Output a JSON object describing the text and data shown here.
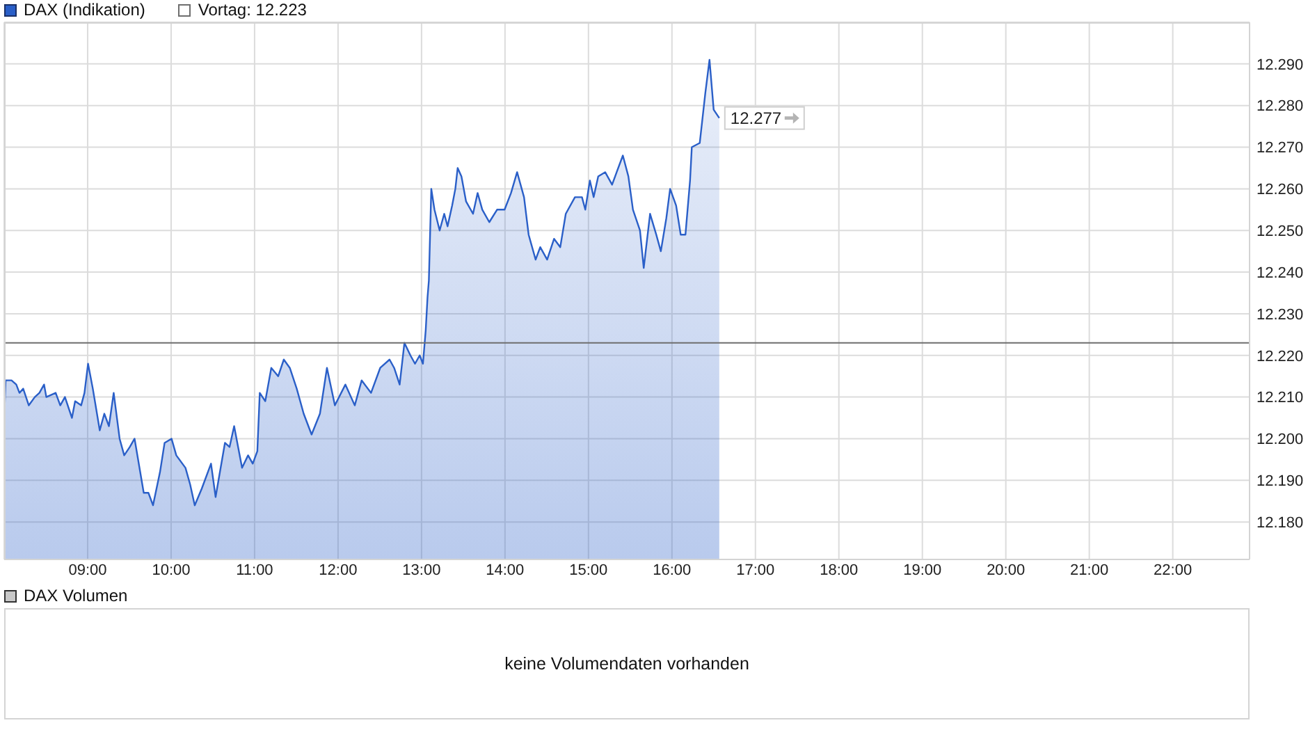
{
  "chart_data": [
    {
      "type": "area",
      "x": [
        8.0,
        8.017,
        8.088,
        8.145,
        8.183,
        8.228,
        8.295,
        8.367,
        8.422,
        8.478,
        8.505,
        8.617,
        8.672,
        8.728,
        8.812,
        8.85,
        8.922,
        8.962,
        9.005,
        9.062,
        9.145,
        9.2,
        9.255,
        9.312,
        9.383,
        9.438,
        9.505,
        9.562,
        9.672,
        9.728,
        9.783,
        9.867,
        9.922,
        10.005,
        10.062,
        10.172,
        10.228,
        10.283,
        10.367,
        10.478,
        10.533,
        10.645,
        10.7,
        10.755,
        10.85,
        10.922,
        10.978,
        11.033,
        11.062,
        11.128,
        11.2,
        11.283,
        11.35,
        11.422,
        11.505,
        11.588,
        11.683,
        11.783,
        11.867,
        11.962,
        12.088,
        12.2,
        12.283,
        12.395,
        12.505,
        12.617,
        12.672,
        12.738,
        12.795,
        12.867,
        12.922,
        12.978,
        13.017,
        13.05,
        13.072,
        13.088,
        13.117,
        13.155,
        13.217,
        13.272,
        13.312,
        13.367,
        13.405,
        13.433,
        13.478,
        13.533,
        13.617,
        13.672,
        13.728,
        13.812,
        13.905,
        13.995,
        14.072,
        14.145,
        14.228,
        14.283,
        14.367,
        14.422,
        14.505,
        14.588,
        14.662,
        14.728,
        14.838,
        14.922,
        14.962,
        15.017,
        15.062,
        15.117,
        15.2,
        15.283,
        15.338,
        15.412,
        15.478,
        15.533,
        15.617,
        15.662,
        15.738,
        15.812,
        15.867,
        15.933,
        15.978,
        16.05,
        16.105,
        16.162,
        16.217,
        16.238,
        16.333,
        16.4,
        16.45,
        16.5,
        16.567
      ],
      "series": [
        {
          "name": "DAX (Indikation)",
          "color": "#2a5fc8",
          "values": [
            12205,
            12214,
            12214,
            12213,
            12211,
            12212,
            12208,
            12210,
            12211,
            12213,
            12210,
            12211,
            12208,
            12210,
            12205,
            12209,
            12208,
            12211,
            12218,
            12212,
            12202,
            12206,
            12203,
            12211,
            12200,
            12196,
            12198,
            12200,
            12187,
            12187,
            12184,
            12192,
            12199,
            12200,
            12196,
            12193,
            12189,
            12184,
            12188,
            12194,
            12186,
            12199,
            12198,
            12203,
            12193,
            12196,
            12194,
            12197,
            12211,
            12209,
            12217,
            12215,
            12219,
            12217,
            12212,
            12206,
            12201,
            12206,
            12217,
            12208,
            12213,
            12208,
            12214,
            12211,
            12217,
            12219,
            12217,
            12213,
            12223,
            12220,
            12218,
            12220,
            12218,
            12226,
            12234,
            12238,
            12260,
            12255,
            12250,
            12254,
            12251,
            12256,
            12260,
            12265,
            12263,
            12257,
            12254,
            12259,
            12255,
            12252,
            12255,
            12255,
            12259,
            12264,
            12258,
            12249,
            12243,
            12246,
            12243,
            12248,
            12246,
            12254,
            12258,
            12258,
            12255,
            12262,
            12258,
            12263,
            12264,
            12261,
            12264,
            12268,
            12263,
            12255,
            12250,
            12241,
            12254,
            12249,
            12245,
            12253,
            12260,
            12256,
            12249,
            12249,
            12262,
            12270,
            12271,
            12283,
            12291,
            12279,
            12277
          ]
        }
      ],
      "xlim": [
        8,
        22.92
      ],
      "xticks": [
        {
          "value": 9,
          "label": "09:00"
        },
        {
          "value": 10,
          "label": "10:00"
        },
        {
          "value": 11,
          "label": "11:00"
        },
        {
          "value": 12,
          "label": "12:00"
        },
        {
          "value": 13,
          "label": "13:00"
        },
        {
          "value": 14,
          "label": "14:00"
        },
        {
          "value": 15,
          "label": "15:00"
        },
        {
          "value": 16,
          "label": "16:00"
        },
        {
          "value": 17,
          "label": "17:00"
        },
        {
          "value": 18,
          "label": "18:00"
        },
        {
          "value": 19,
          "label": "19:00"
        },
        {
          "value": 20,
          "label": "20:00"
        },
        {
          "value": 21,
          "label": "21:00"
        },
        {
          "value": 22,
          "label": "22:00"
        }
      ],
      "ylim": [
        12171,
        12300
      ],
      "yticks": [
        {
          "value": 12180,
          "label": "12.180"
        },
        {
          "value": 12190,
          "label": "12.190"
        },
        {
          "value": 12200,
          "label": "12.200"
        },
        {
          "value": 12210,
          "label": "12.210"
        },
        {
          "value": 12220,
          "label": "12.220"
        },
        {
          "value": 12230,
          "label": "12.230"
        },
        {
          "value": 12240,
          "label": "12.240"
        },
        {
          "value": 12250,
          "label": "12.250"
        },
        {
          "value": 12260,
          "label": "12.260"
        },
        {
          "value": 12270,
          "label": "12.270"
        },
        {
          "value": 12280,
          "label": "12.280"
        },
        {
          "value": 12290,
          "label": "12.290"
        }
      ],
      "grid": true,
      "legend": "top left",
      "ref_lines": [
        {
          "axis": "y",
          "value": 12223,
          "label": "Vortag: 12.223",
          "color": "#6e6e6e"
        }
      ],
      "annotations": [
        {
          "text": "12.277",
          "x": 16.567,
          "y": 12277
        }
      ]
    },
    {
      "type": "other",
      "title": "DAX Volumen",
      "annotations": [
        "keine Volumendaten vorhanden"
      ]
    }
  ]
}
